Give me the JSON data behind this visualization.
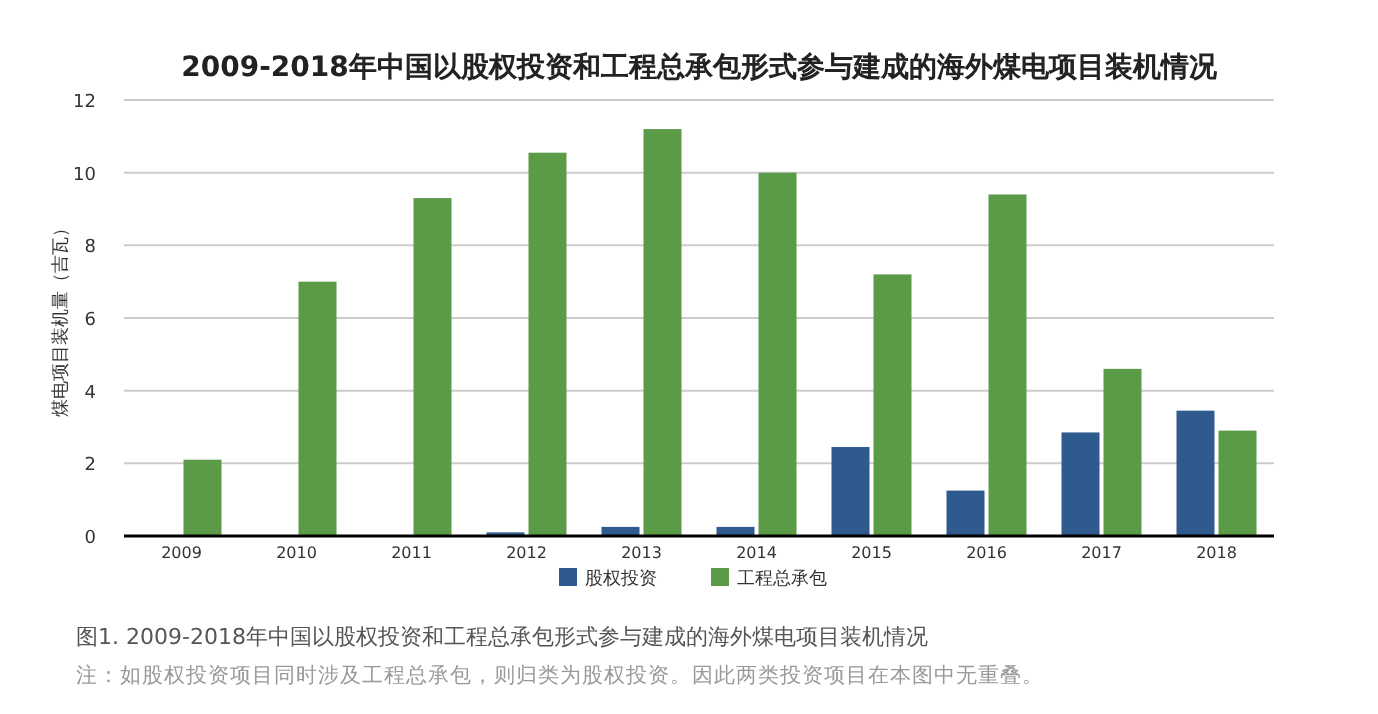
{
  "chart_data": {
    "type": "bar",
    "title": "2009-2018年中国以股权投资和工程总承包形式参与建成的海外煤电项目装机情况",
    "ylabel": "煤电项目装机量（吉瓦）",
    "categories": [
      "2009",
      "2010",
      "2011",
      "2012",
      "2013",
      "2014",
      "2015",
      "2016",
      "2017",
      "2018"
    ],
    "series": [
      {
        "name": "股权投资",
        "color": "#2e5a8e",
        "values": [
          0,
          0,
          0,
          0.1,
          0.25,
          0.25,
          2.45,
          1.25,
          2.85,
          3.45
        ]
      },
      {
        "name": "工程总承包",
        "color": "#5b9a47",
        "values": [
          2.1,
          7.0,
          9.3,
          10.55,
          11.2,
          10.0,
          7.2,
          9.4,
          4.6,
          2.9
        ]
      }
    ],
    "ylim": [
      0,
      12
    ],
    "yticks": [
      0,
      2,
      4,
      6,
      8,
      10,
      12
    ],
    "grid": "y",
    "legend": "bottom",
    "annotations": [
      "图1. 2009-2018年中国以股权投资和工程总承包形式参与建成的海外煤电项目装机情况",
      "注：如股权投资项目同时涉及工程总承包，则归类为股权投资。因此两类投资项目在本图中无重叠。"
    ]
  }
}
